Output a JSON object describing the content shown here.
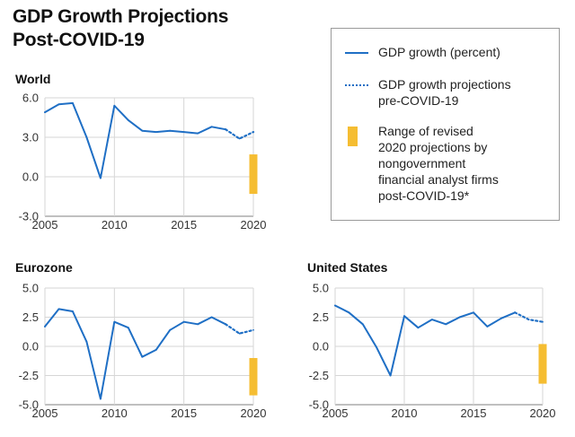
{
  "title": {
    "line1": "GDP Growth Projections",
    "line2": "Post-COVID-19"
  },
  "legend": {
    "solid_label": "GDP growth (percent)",
    "dotted_label_1": "GDP growth projections",
    "dotted_label_2": "pre-COVID-19",
    "range_label_1": "Range of revised",
    "range_label_2": "2020 projections by",
    "range_label_3": "nongovernment",
    "range_label_4": "financial analyst firms",
    "range_label_5": "post-COVID-19*"
  },
  "colors": {
    "line": "#1f6fc5",
    "range": "#f5bd32",
    "axis": "#9a9a9a",
    "grid": "#d6d6d6"
  },
  "chart_data": [
    {
      "type": "line",
      "title": "World",
      "ylim": [
        -3.0,
        6.0
      ],
      "yticks": [
        "6.0",
        "3.0",
        "0.0",
        "-3.0"
      ],
      "ytick_values": [
        6.0,
        3.0,
        0.0,
        -3.0
      ],
      "xlim": [
        2005,
        2020
      ],
      "xticks": [
        "2005",
        "2010",
        "2015",
        "2020"
      ],
      "xtick_values": [
        2005,
        2010,
        2015,
        2020
      ],
      "series": [
        {
          "style": "solid",
          "x": [
            2005,
            2006,
            2007,
            2008,
            2009,
            2010,
            2011,
            2012,
            2013,
            2014,
            2015,
            2016,
            2017,
            2018
          ],
          "y": [
            4.9,
            5.5,
            5.6,
            3.0,
            -0.1,
            5.4,
            4.3,
            3.5,
            3.4,
            3.5,
            3.4,
            3.3,
            3.8,
            3.6
          ]
        },
        {
          "style": "dotted",
          "x": [
            2018,
            2019,
            2020
          ],
          "y": [
            3.6,
            2.9,
            3.4
          ]
        }
      ],
      "range": {
        "x": 2020,
        "low": -1.3,
        "high": 1.7
      }
    },
    {
      "type": "line",
      "title": "Eurozone",
      "ylim": [
        -5.0,
        5.0
      ],
      "yticks": [
        "5.0",
        "2.5",
        "0.0",
        "-2.5",
        "-5.0"
      ],
      "ytick_values": [
        5.0,
        2.5,
        0.0,
        -2.5,
        -5.0
      ],
      "xlim": [
        2005,
        2020
      ],
      "xticks": [
        "2005",
        "2010",
        "2015",
        "2020"
      ],
      "xtick_values": [
        2005,
        2010,
        2015,
        2020
      ],
      "series": [
        {
          "style": "solid",
          "x": [
            2005,
            2006,
            2007,
            2008,
            2009,
            2010,
            2011,
            2012,
            2013,
            2014,
            2015,
            2016,
            2017,
            2018
          ],
          "y": [
            1.7,
            3.2,
            3.0,
            0.4,
            -4.5,
            2.1,
            1.6,
            -0.9,
            -0.3,
            1.4,
            2.1,
            1.9,
            2.5,
            1.9
          ]
        },
        {
          "style": "dotted",
          "x": [
            2018,
            2019,
            2020
          ],
          "y": [
            1.9,
            1.1,
            1.4
          ]
        }
      ],
      "range": {
        "x": 2020,
        "low": -4.2,
        "high": -1.0
      }
    },
    {
      "type": "line",
      "title": "United States",
      "ylim": [
        -5.0,
        5.0
      ],
      "yticks": [
        "5.0",
        "2.5",
        "0.0",
        "-2.5",
        "-5.0"
      ],
      "ytick_values": [
        5.0,
        2.5,
        0.0,
        -2.5,
        -5.0
      ],
      "xlim": [
        2005,
        2020
      ],
      "xticks": [
        "2005",
        "2010",
        "2015",
        "2020"
      ],
      "xtick_values": [
        2005,
        2010,
        2015,
        2020
      ],
      "series": [
        {
          "style": "solid",
          "x": [
            2005,
            2006,
            2007,
            2008,
            2009,
            2010,
            2011,
            2012,
            2013,
            2014,
            2015,
            2016,
            2017,
            2018
          ],
          "y": [
            3.5,
            2.9,
            1.9,
            -0.1,
            -2.5,
            2.6,
            1.6,
            2.3,
            1.9,
            2.5,
            2.9,
            1.7,
            2.4,
            2.9
          ]
        },
        {
          "style": "dotted",
          "x": [
            2018,
            2019,
            2020
          ],
          "y": [
            2.9,
            2.3,
            2.1
          ]
        }
      ],
      "range": {
        "x": 2020,
        "low": -3.2,
        "high": 0.2
      }
    }
  ]
}
